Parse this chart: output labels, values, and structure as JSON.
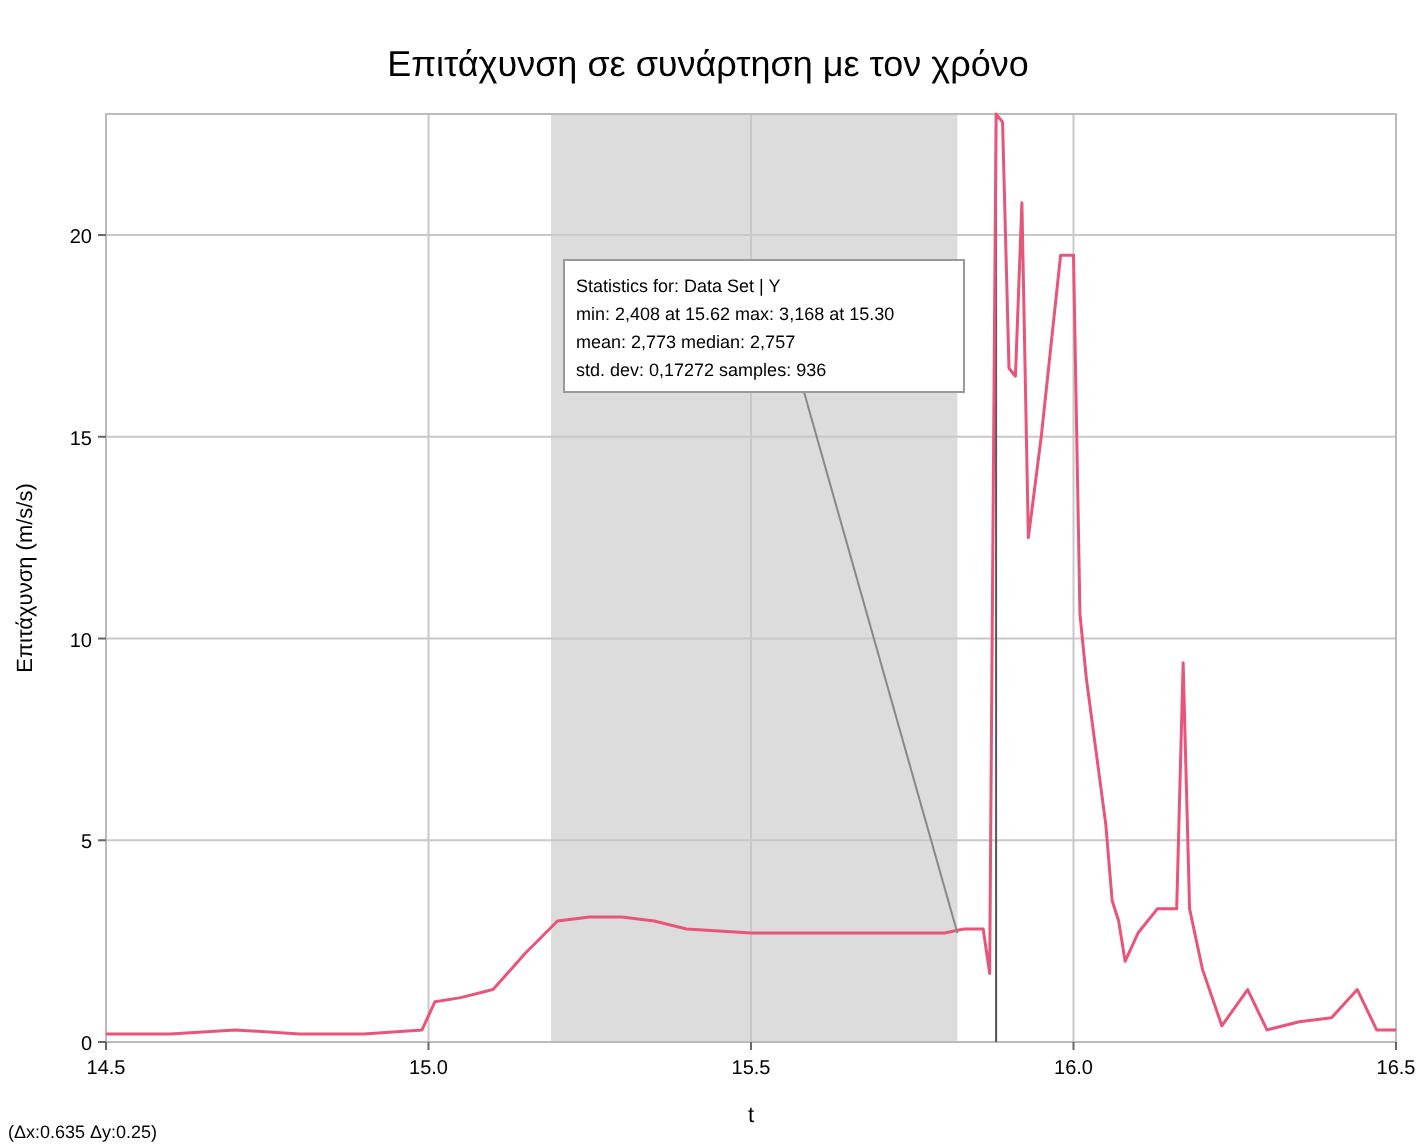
{
  "chart_data": {
    "type": "line",
    "title": "Επιτάχυνση σε συνάρτηση με τον χρόνο",
    "xlabel": "t",
    "ylabel": "Επιτάχυνση (m/s/s)",
    "annotations": [
      {
        "text": "Statistics for: Data Set | Y\nmin: 2,408 at 15.62 max: 3,168 at 15.30\nmean: 2,773 median: 2,757\nstd. dev: 0,17272 samples: 936",
        "x": 15.82,
        "y": 2.7
      },
      "(Δx:0.635 Δy:0.25)"
    ],
    "x": [
      14.5,
      14.6,
      14.7,
      14.8,
      14.9,
      14.99,
      15.01,
      15.05,
      15.1,
      15.15,
      15.2,
      15.25,
      15.3,
      15.35,
      15.4,
      15.5,
      15.6,
      15.7,
      15.8,
      15.83,
      15.86,
      15.87,
      15.88,
      15.89,
      15.9,
      15.91,
      15.92,
      15.93,
      15.95,
      15.98,
      16.0,
      16.01,
      16.02,
      16.05,
      16.06,
      16.07,
      16.08,
      16.1,
      16.13,
      16.16,
      16.17,
      16.18,
      16.2,
      16.23,
      16.27,
      16.3,
      16.35,
      16.4,
      16.44,
      16.47,
      16.5
    ],
    "series": [
      {
        "color": "#e8557a",
        "values": [
          0.2,
          0.2,
          0.3,
          0.2,
          0.2,
          0.3,
          1.0,
          1.1,
          1.3,
          2.2,
          3.0,
          3.1,
          3.1,
          3.0,
          2.8,
          2.7,
          2.7,
          2.7,
          2.7,
          2.8,
          2.8,
          1.7,
          23,
          22.8,
          16.7,
          16.5,
          20.8,
          12.5,
          15,
          19.5,
          19.5,
          10.6,
          9,
          5.4,
          3.5,
          3,
          2,
          2.7,
          3.3,
          3.3,
          9.4,
          3.3,
          1.8,
          0.4,
          1.3,
          0.3,
          0.5,
          0.6,
          1.3,
          0.3,
          0.3
        ]
      }
    ],
    "xlim": [
      14.5,
      16.5
    ],
    "xticks": [
      14.5,
      {
        "value": 15,
        "label": "15.0"
      },
      15.5,
      {
        "value": 16,
        "label": "16.0"
      },
      16.5
    ],
    "ylim": [
      0,
      23
    ],
    "yticks": [
      0,
      5,
      10,
      15,
      20
    ],
    "grid": true,
    "bands": [
      {
        "axis": "x",
        "from": 15.19,
        "to": 15.82,
        "color": "#dcdcdc"
      }
    ],
    "ref_lines": [
      {
        "axis": "x",
        "value": 15.88,
        "color": "#555555"
      }
    ]
  }
}
